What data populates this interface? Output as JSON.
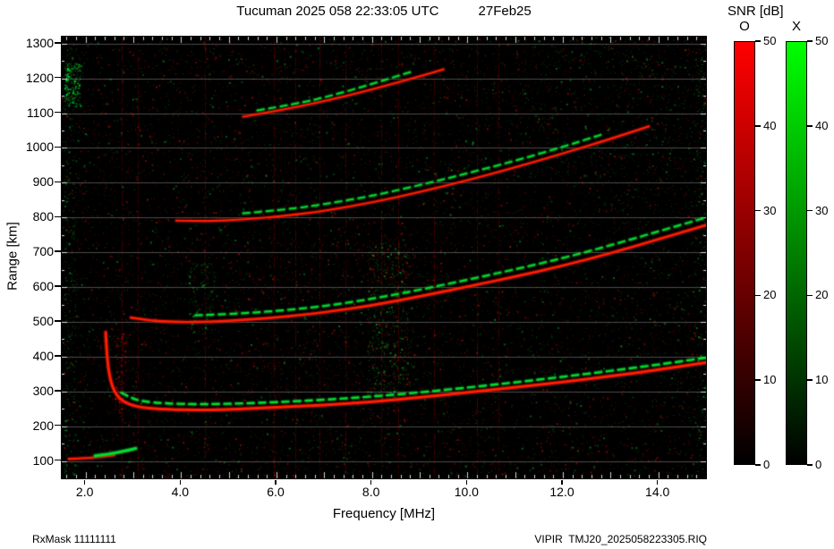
{
  "header": {
    "title": "Tucuman 2025 058 22:33:05 UTC",
    "date": "27Feb25"
  },
  "footer": {
    "rx_mask": "RxMask 11111111",
    "file": "VIPIR  TMJ20_2025058223305.RIQ"
  },
  "colorbar": {
    "title": "SNR [dB]",
    "ticks": [
      0,
      10,
      20,
      30,
      40,
      50
    ],
    "bars": [
      {
        "label": "O",
        "color": "#ff0000"
      },
      {
        "label": "X",
        "color": "#00ff00"
      }
    ]
  },
  "chart_data": {
    "type": "heatmap",
    "subtype": "ionogram",
    "title": "Tucuman 2025 058 22:33:05 UTC 27Feb25",
    "xlabel": "Frequency [MHz]",
    "ylabel": "Range [km]",
    "xlim": [
      1.5,
      15.0
    ],
    "ylim": [
      50,
      1320
    ],
    "x_ticks": [
      2,
      4,
      6,
      8,
      10,
      12,
      14
    ],
    "x_tick_labels": [
      "2.0",
      "4.0",
      "6.0",
      "8.0",
      "10.0",
      "12.0",
      "14.0"
    ],
    "y_ticks": [
      100,
      200,
      300,
      400,
      500,
      600,
      700,
      800,
      900,
      1000,
      1100,
      1200,
      1300
    ],
    "y_tick_labels": [
      "100",
      "200",
      "300",
      "400",
      "500",
      "600",
      "700",
      "800",
      "900",
      "1000",
      "1100",
      "1200",
      "1300"
    ],
    "background": "#000000",
    "grid": {
      "horizontal": true,
      "vertical": false,
      "color": "rgba(150,150,150,0.5)"
    },
    "legend_position": "right",
    "snr_range_db": [
      0,
      50
    ],
    "modes": {
      "O": {
        "color": "#ff1e00",
        "halo": "rgba(190,10,0,0.4)"
      },
      "X": {
        "color": "#00dc32",
        "halo": "rgba(0,150,30,0.4)"
      }
    },
    "traces": [
      {
        "name": "F1-O",
        "mode": "O",
        "width": 3,
        "dash": false,
        "points": [
          [
            2.42,
            470
          ],
          [
            2.44,
            420
          ],
          [
            2.47,
            372
          ],
          [
            2.52,
            332
          ],
          [
            2.6,
            300
          ],
          [
            2.72,
            278
          ],
          [
            2.9,
            263
          ],
          [
            3.2,
            253
          ],
          [
            3.7,
            248
          ],
          [
            4.4,
            246
          ],
          [
            5.2,
            249
          ],
          [
            6.0,
            254
          ],
          [
            7.0,
            261
          ],
          [
            8.0,
            270
          ],
          [
            9.0,
            283
          ],
          [
            10.0,
            297
          ],
          [
            11.0,
            312
          ],
          [
            12.0,
            327
          ],
          [
            13.0,
            344
          ],
          [
            14.0,
            362
          ],
          [
            15.0,
            383
          ]
        ]
      },
      {
        "name": "F1-X",
        "mode": "X",
        "width": 2.4,
        "dash": true,
        "points": [
          [
            2.75,
            296
          ],
          [
            2.95,
            281
          ],
          [
            3.2,
            271
          ],
          [
            3.7,
            265
          ],
          [
            4.4,
            263
          ],
          [
            5.2,
            265
          ],
          [
            6.0,
            269
          ],
          [
            7.0,
            276
          ],
          [
            8.0,
            285
          ],
          [
            9.0,
            297
          ],
          [
            10.0,
            311
          ],
          [
            11.0,
            326
          ],
          [
            12.0,
            342
          ],
          [
            13.0,
            359
          ],
          [
            14.0,
            377
          ],
          [
            15.0,
            397
          ]
        ]
      },
      {
        "name": "F2-O",
        "mode": "O",
        "width": 2.6,
        "dash": false,
        "points": [
          [
            2.95,
            512
          ],
          [
            3.3,
            504
          ],
          [
            3.9,
            499
          ],
          [
            4.6,
            500
          ],
          [
            5.4,
            506
          ],
          [
            6.2,
            515
          ],
          [
            7.0,
            527
          ],
          [
            8.0,
            547
          ],
          [
            9.0,
            573
          ],
          [
            10.0,
            601
          ],
          [
            11.0,
            630
          ],
          [
            12.0,
            661
          ],
          [
            13.0,
            697
          ],
          [
            14.0,
            737
          ],
          [
            15.0,
            778
          ]
        ]
      },
      {
        "name": "F2-X",
        "mode": "X",
        "width": 2.2,
        "dash": true,
        "points": [
          [
            4.3,
            519
          ],
          [
            5.0,
            522
          ],
          [
            6.0,
            531
          ],
          [
            7.0,
            545
          ],
          [
            8.0,
            566
          ],
          [
            9.0,
            592
          ],
          [
            10.0,
            621
          ],
          [
            11.0,
            651
          ],
          [
            12.0,
            683
          ],
          [
            13.0,
            720
          ],
          [
            14.0,
            760
          ],
          [
            15.0,
            800
          ]
        ]
      },
      {
        "name": "F3-O",
        "mode": "O",
        "width": 2.2,
        "dash": false,
        "points": [
          [
            3.9,
            791
          ],
          [
            4.6,
            789
          ],
          [
            5.4,
            795
          ],
          [
            6.2,
            805
          ],
          [
            7.0,
            819
          ],
          [
            8.0,
            843
          ],
          [
            9.0,
            873
          ],
          [
            10.0,
            907
          ],
          [
            11.0,
            944
          ],
          [
            12.0,
            984
          ],
          [
            13.0,
            1026
          ],
          [
            13.8,
            1062
          ]
        ]
      },
      {
        "name": "F3-X",
        "mode": "X",
        "width": 2,
        "dash": true,
        "points": [
          [
            5.3,
            812
          ],
          [
            6.2,
            823
          ],
          [
            7.0,
            838
          ],
          [
            8.0,
            862
          ],
          [
            9.0,
            893
          ],
          [
            10.0,
            927
          ],
          [
            11.0,
            963
          ],
          [
            12.0,
            1003
          ],
          [
            12.8,
            1038
          ]
        ]
      },
      {
        "name": "F4-O",
        "mode": "O",
        "width": 2.2,
        "dash": false,
        "points": [
          [
            5.3,
            1090
          ],
          [
            6.0,
            1106
          ],
          [
            7.0,
            1134
          ],
          [
            8.0,
            1168
          ],
          [
            9.0,
            1206
          ],
          [
            9.5,
            1226
          ]
        ]
      },
      {
        "name": "F4-X",
        "mode": "X",
        "width": 2,
        "dash": true,
        "points": [
          [
            5.6,
            1108
          ],
          [
            6.4,
            1126
          ],
          [
            7.2,
            1152
          ],
          [
            8.0,
            1184
          ],
          [
            8.8,
            1218
          ]
        ]
      },
      {
        "name": "Es-O",
        "mode": "O",
        "width": 2.4,
        "dash": false,
        "points": [
          [
            1.65,
            106
          ],
          [
            2.0,
            108
          ],
          [
            2.35,
            112
          ],
          [
            2.6,
            117
          ]
        ]
      },
      {
        "name": "Es-X",
        "mode": "X",
        "width": 3.2,
        "dash": false,
        "points": [
          [
            2.2,
            115
          ],
          [
            2.5,
            120
          ],
          [
            2.8,
            128
          ],
          [
            3.05,
            136
          ]
        ]
      }
    ],
    "rfi_lines_mhz": [
      2.75,
      3.1,
      4.5,
      5.95,
      6.4,
      6.9,
      7.45,
      8.2,
      8.55,
      9.3,
      10.2,
      10.65
    ],
    "noise": {
      "seed": 11,
      "base": [
        {
          "color": "red",
          "count": 15000,
          "alpha": 0.5
        },
        {
          "color": "green",
          "count": 8500,
          "alpha": 0.42
        }
      ],
      "clusters": [
        {
          "f": [
            1.55,
            1.8
          ],
          "r": [
            60,
            1300
          ],
          "color": "green",
          "count": 500,
          "alpha": 0.6
        },
        {
          "f": [
            1.55,
            1.9
          ],
          "r": [
            1120,
            1245
          ],
          "color": "green",
          "count": 380,
          "alpha": 0.85
        },
        {
          "f": [
            7.9,
            8.75
          ],
          "r": [
            280,
            730
          ],
          "color": "green",
          "count": 900,
          "alpha": 0.55
        },
        {
          "f": [
            7.9,
            8.75
          ],
          "r": [
            230,
            730
          ],
          "color": "red",
          "count": 600,
          "alpha": 0.5
        },
        {
          "f": [
            4.15,
            4.7
          ],
          "r": [
            470,
            670
          ],
          "color": "green",
          "count": 260,
          "alpha": 0.5
        },
        {
          "f": [
            11.0,
            15.0
          ],
          "r": [
            900,
            1330
          ],
          "color": "green",
          "count": 900,
          "alpha": 0.4
        },
        {
          "f": [
            13.0,
            15.0
          ],
          "r": [
            300,
            900
          ],
          "color": "green",
          "count": 420,
          "alpha": 0.35
        },
        {
          "f": [
            14.75,
            15.0
          ],
          "r": [
            50,
            1320
          ],
          "color": "green",
          "count": 380,
          "alpha": 0.55
        },
        {
          "f": [
            5.2,
            9.6
          ],
          "r": [
            560,
            740
          ],
          "color": "red",
          "count": 420,
          "alpha": 0.45
        },
        {
          "f": [
            2.6,
            2.85
          ],
          "r": [
            240,
            470
          ],
          "color": "red",
          "count": 260,
          "alpha": 0.85
        },
        {
          "f": [
            5.5,
            9.8
          ],
          "r": [
            230,
            520
          ],
          "color": "red",
          "count": 350,
          "alpha": 0.4
        },
        {
          "f": [
            3.0,
            7.0
          ],
          "r": [
            60,
            1320
          ],
          "color": "red",
          "count": 800,
          "alpha": 0.3
        }
      ]
    }
  }
}
